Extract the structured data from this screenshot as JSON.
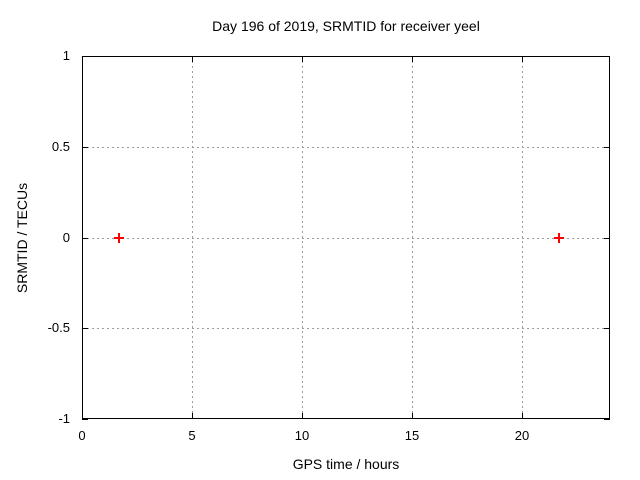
{
  "chart_data": {
    "type": "scatter",
    "title": "Day 196 of 2019, SRMTID for receiver yeel",
    "xlabel": "GPS time / hours",
    "ylabel": "SRMTID / TECUs",
    "xlim": [
      0,
      24
    ],
    "ylim": [
      -1,
      1
    ],
    "x_ticks": [
      0,
      5,
      10,
      15,
      20
    ],
    "x_tick_labels": [
      "0",
      "5",
      "10",
      "15",
      "20"
    ],
    "y_ticks": [
      1,
      0.5,
      0,
      -0.5,
      -1
    ],
    "y_tick_labels": [
      "1",
      "0.5",
      "0",
      "-0.5",
      "-1"
    ],
    "grid": true,
    "legend": "none",
    "series": [
      {
        "name": "SRMTID",
        "marker": "plus",
        "color": "#ff0000",
        "points": [
          {
            "x": 1.7,
            "y": 0
          },
          {
            "x": 21.7,
            "y": 0
          }
        ]
      }
    ]
  },
  "colors": {
    "background": "#ffffff",
    "plot_border": "#000000",
    "grid": "#9c9c9c",
    "text": "#000000"
  }
}
